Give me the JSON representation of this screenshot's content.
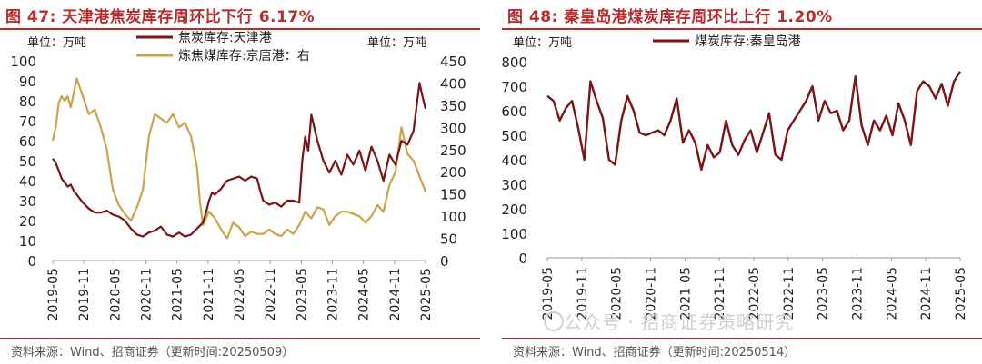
{
  "left": {
    "title": "图 47:  天津港焦炭库存周环比下行 6.17%",
    "source": "资料来源：Wind、招商证券（更新时间:20250509）",
    "unit_left": "单位：万吨",
    "unit_right": "单位：万吨",
    "legend": [
      "焦炭库存:天津港",
      "炼焦煤库存:京唐港：右"
    ],
    "colors": {
      "series1": "#7b1416",
      "series2": "#c9a44a"
    }
  },
  "right": {
    "title": "图 48:  秦皇岛港煤炭库存周环比上行 1.20%",
    "source": "资料来源：Wind、招商证券（更新时间:20250514）",
    "unit_left": "单位：万吨",
    "legend": [
      "煤炭库存:秦皇岛港"
    ],
    "colors": {
      "series1": "#7b1416"
    }
  },
  "watermark": "公众号 · 招商证券策略研究",
  "chart_data": [
    {
      "type": "line",
      "x_ticks": [
        "2019-05",
        "2019-11",
        "2020-05",
        "2020-11",
        "2021-05",
        "2021-11",
        "2022-05",
        "2022-11",
        "2023-05",
        "2023-11",
        "2024-05",
        "2024-11",
        "2025-05"
      ],
      "yleft_ticks": [
        "0",
        "10",
        "20",
        "30",
        "40",
        "50",
        "60",
        "70",
        "80",
        "90",
        "100"
      ],
      "yright_ticks": [
        "0",
        "50",
        "100",
        "150",
        "200",
        "250",
        "300",
        "350",
        "400",
        "450"
      ],
      "ylim_left": [
        0,
        100
      ],
      "ylim_right": [
        0,
        450
      ],
      "series": [
        {
          "name": "焦炭库存:天津港",
          "axis": "left",
          "points": [
            [
              0,
              51
            ],
            [
              0.5,
              49
            ],
            [
              1,
              45
            ],
            [
              1.5,
              41
            ],
            [
              2,
              39
            ],
            [
              2.5,
              37
            ],
            [
              3,
              38
            ],
            [
              3.5,
              35
            ],
            [
              4,
              33
            ],
            [
              5,
              29
            ],
            [
              6,
              26
            ],
            [
              7,
              24
            ],
            [
              8,
              24
            ],
            [
              9,
              25
            ],
            [
              10,
              23
            ],
            [
              11,
              22
            ],
            [
              12,
              20
            ],
            [
              13,
              16
            ],
            [
              14,
              13
            ],
            [
              15,
              12
            ],
            [
              16,
              14
            ],
            [
              17,
              15
            ],
            [
              18,
              17
            ],
            [
              19,
              13
            ],
            [
              20,
              12
            ],
            [
              21,
              14
            ],
            [
              22,
              12
            ],
            [
              23,
              13
            ],
            [
              24,
              16
            ],
            [
              25,
              19
            ],
            [
              25.5,
              24
            ],
            [
              26,
              30
            ],
            [
              26.5,
              34
            ],
            [
              27,
              33
            ],
            [
              28,
              36
            ],
            [
              29,
              40
            ],
            [
              30,
              41
            ],
            [
              31,
              42
            ],
            [
              32,
              40
            ],
            [
              33,
              42
            ],
            [
              34,
              41
            ],
            [
              34.5,
              35
            ],
            [
              35,
              30
            ],
            [
              36,
              28
            ],
            [
              37,
              29
            ],
            [
              38,
              27
            ],
            [
              39,
              30
            ],
            [
              40,
              30
            ],
            [
              41,
              29
            ],
            [
              41.5,
              50
            ],
            [
              42,
              62
            ],
            [
              42.5,
              55
            ],
            [
              43,
              73
            ],
            [
              44,
              60
            ],
            [
              45,
              50
            ],
            [
              46,
              44
            ],
            [
              47,
              50
            ],
            [
              48,
              43
            ],
            [
              49,
              53
            ],
            [
              50,
              48
            ],
            [
              51,
              55
            ],
            [
              52,
              45
            ],
            [
              53,
              57
            ],
            [
              54,
              50
            ],
            [
              55,
              40
            ],
            [
              56,
              53
            ],
            [
              57,
              48
            ],
            [
              58,
              60
            ],
            [
              59,
              58
            ],
            [
              60,
              65
            ],
            [
              61,
              89
            ],
            [
              61.5,
              82
            ],
            [
              62,
              76
            ]
          ]
        },
        {
          "name": "炼焦煤库存:京唐港：右",
          "axis": "right",
          "points": [
            [
              0,
              270
            ],
            [
              0.5,
              300
            ],
            [
              1,
              355
            ],
            [
              1.5,
              370
            ],
            [
              2,
              360
            ],
            [
              2.5,
              370
            ],
            [
              3,
              345
            ],
            [
              4,
              410
            ],
            [
              5,
              370
            ],
            [
              6,
              330
            ],
            [
              7,
              340
            ],
            [
              8,
              300
            ],
            [
              9,
              250
            ],
            [
              10,
              160
            ],
            [
              11,
              125
            ],
            [
              12,
              105
            ],
            [
              13,
              90
            ],
            [
              14,
              120
            ],
            [
              15,
              160
            ],
            [
              16,
              280
            ],
            [
              17,
              330
            ],
            [
              18,
              320
            ],
            [
              19,
              310
            ],
            [
              20,
              330
            ],
            [
              21,
              300
            ],
            [
              22,
              310
            ],
            [
              23,
              280
            ],
            [
              24,
              210
            ],
            [
              24.5,
              130
            ],
            [
              25,
              80
            ],
            [
              26,
              110
            ],
            [
              27,
              95
            ],
            [
              28,
              70
            ],
            [
              29,
              50
            ],
            [
              30,
              85
            ],
            [
              31,
              75
            ],
            [
              32,
              55
            ],
            [
              33,
              65
            ],
            [
              34,
              60
            ],
            [
              35,
              60
            ],
            [
              36,
              70
            ],
            [
              37,
              60
            ],
            [
              38,
              55
            ],
            [
              39,
              70
            ],
            [
              40,
              60
            ],
            [
              41,
              80
            ],
            [
              42,
              110
            ],
            [
              43,
              95
            ],
            [
              44,
              120
            ],
            [
              45,
              115
            ],
            [
              46,
              80
            ],
            [
              47,
              100
            ],
            [
              48,
              110
            ],
            [
              49,
              110
            ],
            [
              50,
              105
            ],
            [
              51,
              100
            ],
            [
              52,
              85
            ],
            [
              53,
              100
            ],
            [
              54,
              125
            ],
            [
              55,
              110
            ],
            [
              56,
              170
            ],
            [
              57,
              200
            ],
            [
              58,
              300
            ],
            [
              59,
              240
            ],
            [
              60,
              225
            ],
            [
              61,
              190
            ],
            [
              62,
              155
            ]
          ]
        }
      ]
    },
    {
      "type": "line",
      "x_ticks": [
        "2019-05",
        "2019-11",
        "2020-05",
        "2020-11",
        "2021-05",
        "2021-11",
        "2022-05",
        "2022-11",
        "2023-05",
        "2023-11",
        "2024-05",
        "2024-11",
        "2025-05"
      ],
      "y_ticks": [
        "0",
        "100",
        "200",
        "300",
        "400",
        "500",
        "600",
        "700",
        "800"
      ],
      "ylim": [
        0,
        800
      ],
      "series": [
        {
          "name": "煤炭库存:秦皇岛港",
          "points": [
            [
              0,
              660
            ],
            [
              1,
              640
            ],
            [
              2,
              560
            ],
            [
              3,
              610
            ],
            [
              4,
              640
            ],
            [
              5,
              530
            ],
            [
              6,
              400
            ],
            [
              7,
              720
            ],
            [
              8,
              640
            ],
            [
              9,
              570
            ],
            [
              10,
              400
            ],
            [
              11,
              380
            ],
            [
              12,
              560
            ],
            [
              13,
              660
            ],
            [
              14,
              600
            ],
            [
              15,
              510
            ],
            [
              16,
              500
            ],
            [
              17,
              510
            ],
            [
              18,
              520
            ],
            [
              19,
              500
            ],
            [
              20,
              560
            ],
            [
              21,
              650
            ],
            [
              22,
              470
            ],
            [
              23,
              520
            ],
            [
              24,
              470
            ],
            [
              25,
              360
            ],
            [
              26,
              460
            ],
            [
              27,
              410
            ],
            [
              28,
              430
            ],
            [
              29,
              560
            ],
            [
              30,
              460
            ],
            [
              31,
              420
            ],
            [
              32,
              480
            ],
            [
              33,
              520
            ],
            [
              34,
              430
            ],
            [
              35,
              510
            ],
            [
              36,
              590
            ],
            [
              37,
              420
            ],
            [
              38,
              400
            ],
            [
              39,
              520
            ],
            [
              40,
              560
            ],
            [
              41,
              600
            ],
            [
              42,
              640
            ],
            [
              43,
              700
            ],
            [
              44,
              560
            ],
            [
              45,
              640
            ],
            [
              46,
              590
            ],
            [
              47,
              600
            ],
            [
              48,
              520
            ],
            [
              49,
              560
            ],
            [
              50,
              740
            ],
            [
              51,
              540
            ],
            [
              52,
              460
            ],
            [
              53,
              560
            ],
            [
              54,
              520
            ],
            [
              55,
              580
            ],
            [
              56,
              500
            ],
            [
              57,
              630
            ],
            [
              58,
              560
            ],
            [
              59,
              460
            ],
            [
              60,
              680
            ],
            [
              61,
              720
            ],
            [
              62,
              700
            ],
            [
              63,
              650
            ],
            [
              64,
              710
            ],
            [
              65,
              620
            ],
            [
              66,
              720
            ],
            [
              67,
              760
            ]
          ]
        }
      ]
    }
  ]
}
